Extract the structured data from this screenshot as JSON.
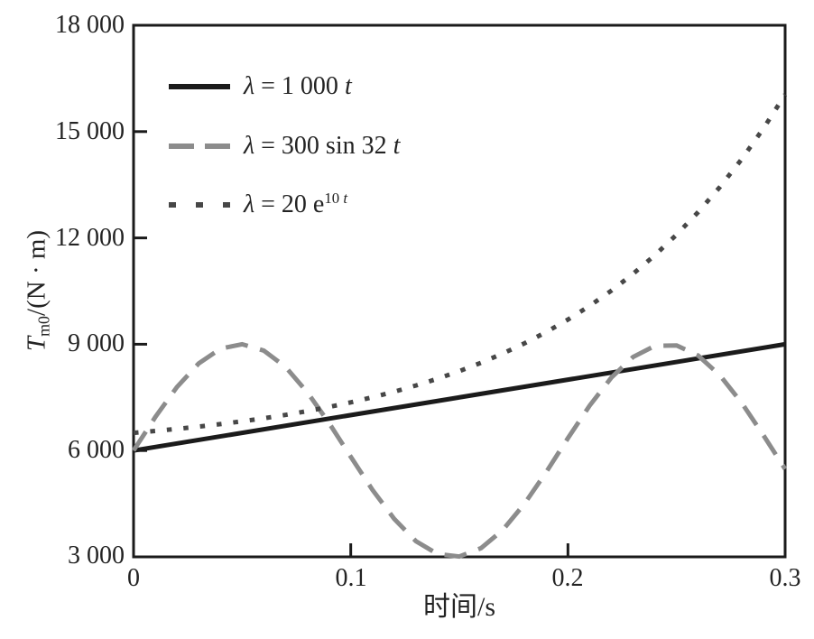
{
  "figure_caption": "",
  "axis": {
    "y_title_main": "T",
    "y_title_sub": "m0",
    "y_title_rest": "/(N · m)",
    "x_title": "时间/s"
  },
  "legend": {
    "items": [
      {
        "lambda": "λ",
        "mid": " = 1 000 ",
        "tail_var": "t",
        "sup_num": "",
        "sup_var": ""
      },
      {
        "lambda": "λ",
        "mid": " = 300 sin 32 ",
        "tail_var": "t",
        "sup_num": "",
        "sup_var": ""
      },
      {
        "lambda": "λ",
        "mid": " = 20 e",
        "tail_var": "",
        "sup_num": "10 ",
        "sup_var": "t"
      }
    ]
  },
  "chart_data": {
    "type": "line",
    "title": "",
    "xlabel": "时间/s",
    "ylabel": "T_m0/(N · m)",
    "x_range": [
      0,
      0.3
    ],
    "y_range": [
      3000,
      18000
    ],
    "x_tick_values": [
      0,
      0.1,
      0.2,
      0.3
    ],
    "x_tick_labels": [
      "0",
      "0.1",
      "0.2",
      "0.3"
    ],
    "y_tick_values": [
      3000,
      6000,
      9000,
      12000,
      15000,
      18000
    ],
    "y_tick_labels": [
      "3 000",
      "6 000",
      "9 000",
      "12 000",
      "15 000",
      "18 000"
    ],
    "grid": false,
    "legend_position": "top-left-inside",
    "frame_color": "#1b1b1b",
    "series": [
      {
        "id": "lambda-1000t",
        "name": "λ = 1 000 t",
        "style": "solid",
        "color": "#1b1b1b",
        "points": [
          [
            0,
            6000
          ],
          [
            0.3,
            9000
          ]
        ]
      },
      {
        "id": "lambda-300sin32t",
        "name": "λ = 300 sin 32 t",
        "style": "dashed",
        "color": "#8c8c8c",
        "points": [
          [
            0.0,
            6000
          ],
          [
            0.01,
            6944
          ],
          [
            0.02,
            7792
          ],
          [
            0.03,
            8458
          ],
          [
            0.04,
            8874
          ],
          [
            0.05,
            8999
          ],
          [
            0.06,
            8819
          ],
          [
            0.07,
            8355
          ],
          [
            0.08,
            7646
          ],
          [
            0.09,
            6776
          ],
          [
            0.1,
            5825
          ],
          [
            0.11,
            4892
          ],
          [
            0.12,
            4071
          ],
          [
            0.13,
            3443
          ],
          [
            0.14,
            3080
          ],
          [
            0.15,
            3011
          ],
          [
            0.16,
            3246
          ],
          [
            0.17,
            3760
          ],
          [
            0.18,
            4501
          ],
          [
            0.19,
            5395
          ],
          [
            0.2,
            6350
          ],
          [
            0.21,
            7269
          ],
          [
            0.22,
            8060
          ],
          [
            0.23,
            8641
          ],
          [
            0.24,
            8955
          ],
          [
            0.25,
            8968
          ],
          [
            0.26,
            8680
          ],
          [
            0.27,
            8120
          ],
          [
            0.28,
            7345
          ],
          [
            0.29,
            6433
          ],
          [
            0.3,
            5477
          ]
        ]
      },
      {
        "id": "lambda-20e10t",
        "name": "λ = 20 e^(10t)",
        "style": "dotted",
        "color": "#474747",
        "points": [
          [
            0.0,
            6500
          ],
          [
            0.01,
            6553
          ],
          [
            0.02,
            6611
          ],
          [
            0.03,
            6675
          ],
          [
            0.04,
            6746
          ],
          [
            0.05,
            6824
          ],
          [
            0.06,
            6911
          ],
          [
            0.07,
            7007
          ],
          [
            0.08,
            7113
          ],
          [
            0.09,
            7230
          ],
          [
            0.1,
            7359
          ],
          [
            0.11,
            7502
          ],
          [
            0.12,
            7660
          ],
          [
            0.13,
            7835
          ],
          [
            0.14,
            8028
          ],
          [
            0.15,
            8241
          ],
          [
            0.16,
            8477
          ],
          [
            0.17,
            8737
          ],
          [
            0.18,
            9025
          ],
          [
            0.19,
            9343
          ],
          [
            0.2,
            9695
          ],
          [
            0.21,
            10083
          ],
          [
            0.22,
            10513
          ],
          [
            0.23,
            10987
          ],
          [
            0.24,
            11512
          ],
          [
            0.25,
            12091
          ],
          [
            0.26,
            12732
          ],
          [
            0.27,
            13440
          ],
          [
            0.28,
            14222
          ],
          [
            0.29,
            15087
          ],
          [
            0.3,
            16043
          ]
        ]
      }
    ]
  }
}
